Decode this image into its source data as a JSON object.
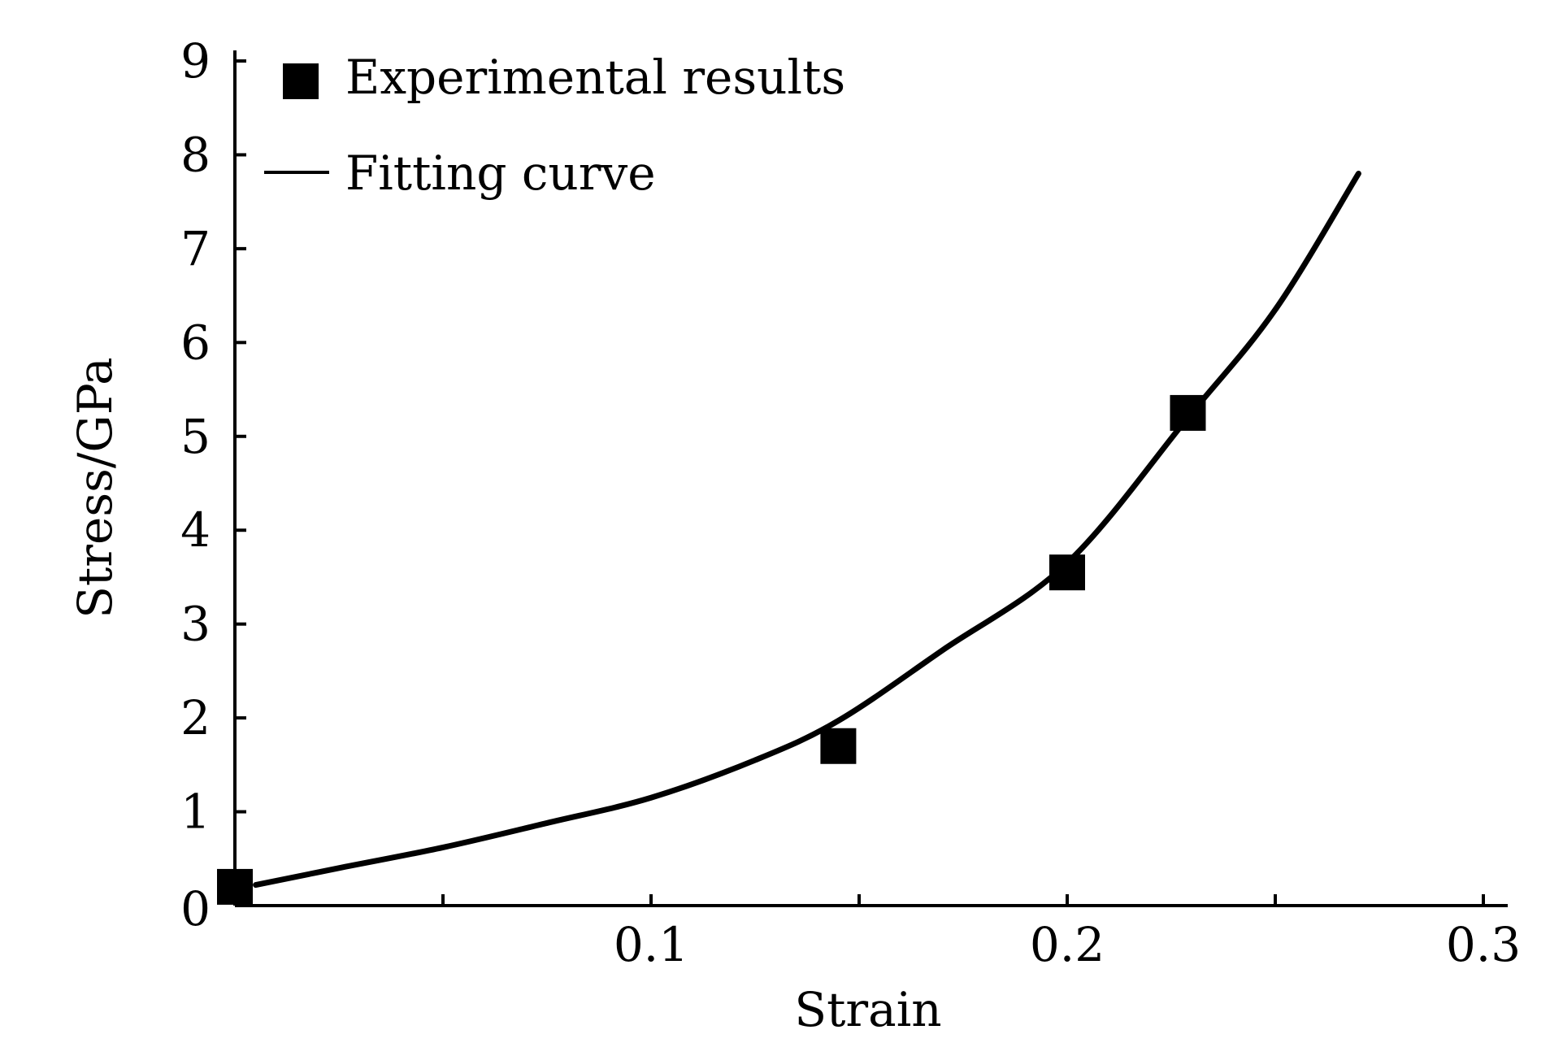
{
  "chart_data": {
    "type": "scatter",
    "xlabel": "Strain",
    "ylabel": "Stress/GPa",
    "xlim": [
      0,
      0.3
    ],
    "ylim": [
      0,
      9
    ],
    "x_ticks": [
      0.1,
      0.2,
      0.3
    ],
    "x_tick_labels": [
      "0.1",
      "0.2",
      "0.3"
    ],
    "x_minor_ticks": [
      0.05,
      0.15,
      0.25
    ],
    "y_ticks": [
      0,
      1,
      2,
      3,
      4,
      5,
      6,
      7,
      8,
      9
    ],
    "y_tick_labels": [
      "0",
      "1",
      "2",
      "3",
      "4",
      "5",
      "6",
      "7",
      "8",
      "9"
    ],
    "grid": false,
    "legend_position": "top-left",
    "series": [
      {
        "name": "Experimental results",
        "kind": "scatter",
        "marker": "square",
        "x": [
          0.0,
          0.145,
          0.2,
          0.229
        ],
        "y": [
          0.2,
          1.7,
          3.55,
          5.25
        ]
      },
      {
        "name": "Fitting curve",
        "kind": "line",
        "x": [
          0.005,
          0.025,
          0.05,
          0.075,
          0.1,
          0.125,
          0.145,
          0.17,
          0.2,
          0.229,
          0.25,
          0.27
        ],
        "y": [
          0.22,
          0.4,
          0.62,
          0.88,
          1.15,
          1.55,
          1.97,
          2.72,
          3.65,
          5.2,
          6.35,
          7.8
        ]
      }
    ]
  }
}
